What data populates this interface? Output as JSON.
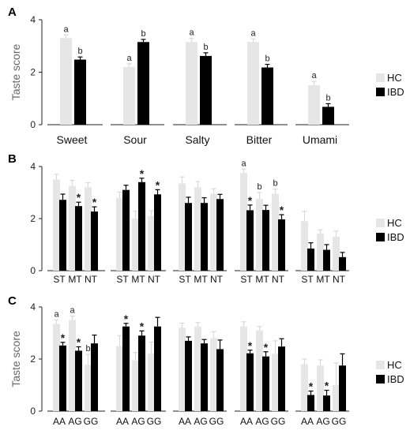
{
  "colors": {
    "hc": "#e6e6e6",
    "ibd": "#000000",
    "axis": "#222222",
    "sig": "#222222"
  },
  "legend": {
    "hc_label": "HC",
    "ibd_label": "IBD"
  },
  "chart_data": [
    {
      "panel": "A",
      "type": "bar",
      "ylabel": "Taste score",
      "ylim": [
        0,
        4
      ],
      "yticks": [
        0,
        2,
        4
      ],
      "groups": [
        {
          "categories": [
            "Sweet"
          ],
          "hc": [
            3.3
          ],
          "ibd": [
            2.48
          ],
          "hc_err": [
            0.12
          ],
          "ibd_err": [
            0.1
          ],
          "hc_sig": [
            "a"
          ],
          "ibd_sig": [
            "b"
          ]
        },
        {
          "categories": [
            "Sour"
          ],
          "hc": [
            2.2
          ],
          "ibd": [
            3.15
          ],
          "hc_err": [
            0.12
          ],
          "ibd_err": [
            0.1
          ],
          "hc_sig": [
            "a"
          ],
          "ibd_sig": [
            "b"
          ]
        },
        {
          "categories": [
            "Salty"
          ],
          "hc": [
            3.15
          ],
          "ibd": [
            2.62
          ],
          "hc_err": [
            0.14
          ],
          "ibd_err": [
            0.12
          ],
          "hc_sig": [
            "a"
          ],
          "ibd_sig": [
            "b"
          ]
        },
        {
          "categories": [
            "Bitter"
          ],
          "hc": [
            3.15
          ],
          "ibd": [
            2.18
          ],
          "hc_err": [
            0.12
          ],
          "ibd_err": [
            0.12
          ],
          "hc_sig": [
            "a"
          ],
          "ibd_sig": [
            "b"
          ]
        },
        {
          "categories": [
            "Umami"
          ],
          "hc": [
            1.5
          ],
          "ibd": [
            0.68
          ],
          "hc_err": [
            0.15
          ],
          "ibd_err": [
            0.12
          ],
          "hc_sig": [
            "a"
          ],
          "ibd_sig": [
            "b"
          ]
        }
      ]
    },
    {
      "panel": "B",
      "type": "bar",
      "ylabel": "",
      "ylim": [
        0,
        4
      ],
      "yticks": [
        0,
        2,
        4
      ],
      "groups": [
        {
          "categories": [
            "ST",
            "MT",
            "NT"
          ],
          "hc": [
            3.5,
            3.25,
            3.2
          ],
          "ibd": [
            2.72,
            2.48,
            2.27
          ],
          "hc_err": [
            0.2,
            0.22,
            0.18
          ],
          "ibd_err": [
            0.22,
            0.15,
            0.18
          ],
          "hc_sig": [
            "",
            "",
            ""
          ],
          "ibd_sig": [
            "",
            "*",
            "*"
          ]
        },
        {
          "categories": [
            "ST",
            "MT",
            "NT"
          ],
          "hc": [
            2.8,
            2.0,
            2.1
          ],
          "ibd": [
            3.1,
            3.4,
            2.93
          ],
          "hc_err": [
            0.22,
            0.28,
            0.2
          ],
          "ibd_err": [
            0.18,
            0.15,
            0.18
          ],
          "hc_sig": [
            "",
            "",
            ""
          ],
          "ibd_sig": [
            "",
            "*",
            "*"
          ]
        },
        {
          "categories": [
            "ST",
            "MT",
            "NT"
          ],
          "hc": [
            3.35,
            3.2,
            2.95
          ],
          "ibd": [
            2.6,
            2.6,
            2.75
          ],
          "hc_err": [
            0.25,
            0.22,
            0.2
          ],
          "ibd_err": [
            0.22,
            0.2,
            0.18
          ],
          "hc_sig": [
            "",
            "",
            ""
          ],
          "ibd_sig": [
            "",
            "",
            ""
          ]
        },
        {
          "categories": [
            "ST",
            "MT",
            "NT"
          ],
          "hc": [
            3.75,
            2.75,
            2.95
          ],
          "ibd": [
            2.32,
            2.33,
            1.97
          ],
          "hc_err": [
            0.15,
            0.25,
            0.18
          ],
          "ibd_err": [
            0.2,
            0.18,
            0.18
          ],
          "hc_sig": [
            "a",
            "b",
            "b"
          ],
          "ibd_sig": [
            "*",
            "",
            "*"
          ]
        },
        {
          "categories": [
            "ST",
            "MT",
            "NT"
          ],
          "hc": [
            1.9,
            1.42,
            1.3
          ],
          "ibd": [
            0.85,
            0.8,
            0.52
          ],
          "hc_err": [
            0.38,
            0.15,
            0.22
          ],
          "ibd_err": [
            0.22,
            0.2,
            0.18
          ],
          "hc_sig": [
            "",
            "",
            ""
          ],
          "ibd_sig": [
            "",
            "",
            ""
          ]
        }
      ]
    },
    {
      "panel": "C",
      "type": "bar",
      "ylabel": "Taste score",
      "ylim": [
        0,
        4
      ],
      "yticks": [
        0,
        2,
        4
      ],
      "groups": [
        {
          "categories": [
            "AA",
            "AG",
            "GG"
          ],
          "hc": [
            3.35,
            3.5,
            1.78
          ],
          "ibd": [
            2.52,
            2.32,
            2.6
          ],
          "hc_err": [
            0.15,
            0.15,
            0.4
          ],
          "ibd_err": [
            0.12,
            0.15,
            0.32
          ],
          "hc_sig": [
            "a",
            "a",
            "b"
          ],
          "ibd_sig": [
            "*",
            "*",
            ""
          ]
        },
        {
          "categories": [
            "AA",
            "AG",
            "GG"
          ],
          "hc": [
            2.5,
            1.95,
            2.2
          ],
          "ibd": [
            3.25,
            2.9,
            3.25
          ],
          "hc_err": [
            0.4,
            0.3,
            0.45
          ],
          "ibd_err": [
            0.12,
            0.18,
            0.35
          ],
          "hc_sig": [
            "",
            "",
            ""
          ],
          "ibd_sig": [
            "*",
            "*",
            ""
          ]
        },
        {
          "categories": [
            "AA",
            "AG",
            "GG"
          ],
          "hc": [
            3.2,
            3.25,
            2.8
          ],
          "ibd": [
            2.7,
            2.6,
            2.38
          ],
          "hc_err": [
            0.18,
            0.15,
            0.25
          ],
          "ibd_err": [
            0.15,
            0.15,
            0.35
          ],
          "hc_sig": [
            "",
            "",
            ""
          ],
          "ibd_sig": [
            "",
            "",
            ""
          ]
        },
        {
          "categories": [
            "AA",
            "AG",
            "GG"
          ],
          "hc": [
            3.25,
            3.1,
            2.2
          ],
          "ibd": [
            2.22,
            2.1,
            2.48
          ],
          "hc_err": [
            0.18,
            0.15,
            0.5
          ],
          "ibd_err": [
            0.12,
            0.18,
            0.3
          ],
          "hc_sig": [
            "",
            "",
            ""
          ],
          "ibd_sig": [
            "*",
            "*",
            ""
          ]
        },
        {
          "categories": [
            "AA",
            "AG",
            "GG"
          ],
          "hc": [
            1.8,
            1.75,
            1.0
          ],
          "ibd": [
            0.62,
            0.6,
            1.75
          ],
          "hc_err": [
            0.2,
            0.22,
            0.85
          ],
          "ibd_err": [
            0.15,
            0.2,
            0.45
          ],
          "hc_sig": [
            "",
            "",
            ""
          ],
          "ibd_sig": [
            "*",
            "*",
            ""
          ]
        }
      ]
    }
  ]
}
